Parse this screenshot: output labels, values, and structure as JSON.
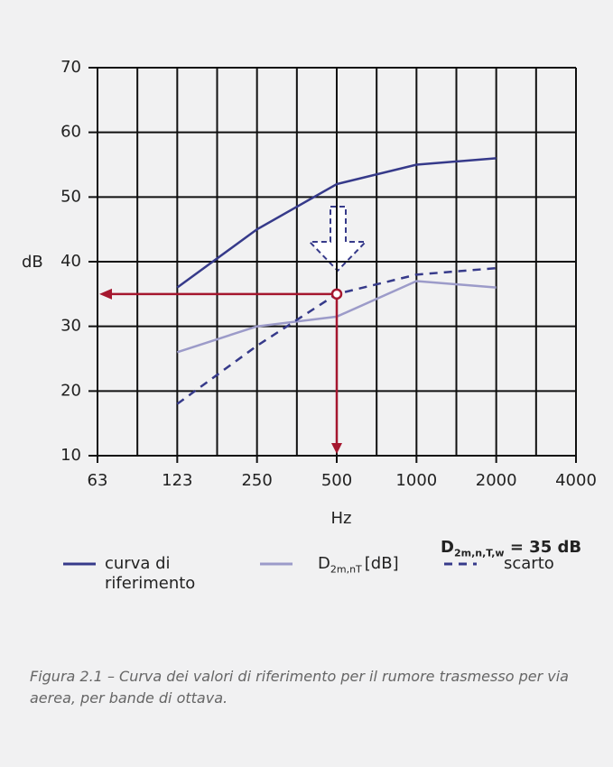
{
  "chart_data": {
    "type": "line",
    "categories": [
      "63",
      "123",
      "250",
      "500",
      "1000",
      "2000",
      "4000"
    ],
    "series": [
      {
        "name": "curva di riferimento",
        "color": "#363a8a",
        "dash": false,
        "values": [
          null,
          36,
          45,
          52,
          55,
          56,
          null
        ]
      },
      {
        "name": "D",
        "name_sub": "2m,nT",
        "name_suffix": "[dB]",
        "color": "#9c9bc9",
        "dash": false,
        "values": [
          null,
          26,
          30,
          31.5,
          37,
          36,
          null
        ]
      },
      {
        "name": "scarto",
        "color": "#363a8a",
        "dash": true,
        "values": [
          null,
          18,
          27,
          35,
          38,
          39,
          null
        ]
      }
    ],
    "ylim": [
      10,
      70
    ],
    "yticks": [
      10,
      20,
      30,
      40,
      50,
      60,
      70
    ],
    "ylabel": "dB",
    "xlabel": "Hz",
    "grid": true,
    "annotation": {
      "x": "500",
      "y": 35,
      "color": "#a5172f",
      "text": "D",
      "text_sub": "2m,n,T,w",
      "text_suffix": "= 35 dB"
    }
  },
  "caption": "Figura 2.1 – Curva dei valori di riferimento per il rumore trasmesso per via aerea, per bande di ottava."
}
